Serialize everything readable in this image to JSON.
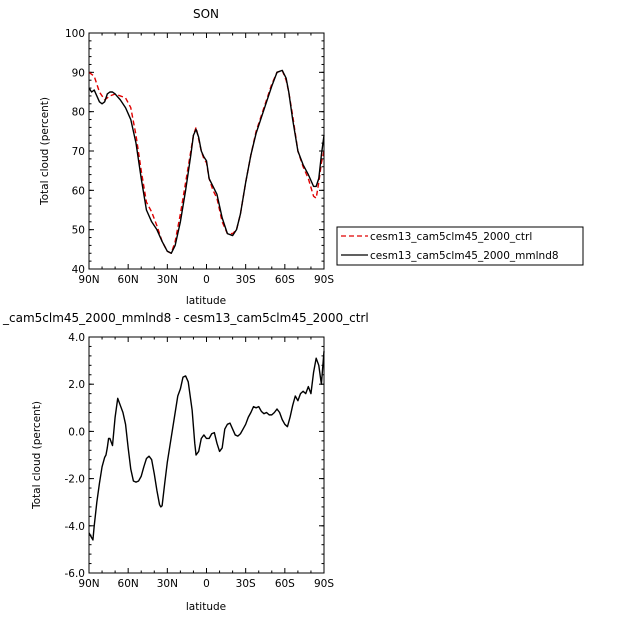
{
  "chart_data": [
    {
      "type": "line",
      "title": "SON",
      "xlabel": "latitude",
      "ylabel": "Total cloud (percent)",
      "xlim": [
        90,
        -90
      ],
      "ylim": [
        40,
        100
      ],
      "xticks": [
        90,
        60,
        30,
        0,
        -30,
        -60,
        -90
      ],
      "xtick_labels": [
        "90N",
        "60N",
        "30N",
        "0",
        "30S",
        "60S",
        "90S"
      ],
      "yticks": [
        40,
        50,
        60,
        70,
        80,
        90,
        100
      ],
      "ytick_labels": [
        "40",
        "50",
        "60",
        "70",
        "80",
        "90",
        "100"
      ],
      "legend_position": "right",
      "series": [
        {
          "name": "cesm13_cam5clm45_2000_ctrl",
          "color": "#e00000",
          "dash": "dashed",
          "x": [
            90,
            86,
            82,
            78,
            74,
            70,
            66,
            62,
            58,
            54,
            50,
            46,
            42,
            38,
            34,
            30,
            27,
            24,
            20,
            16,
            12,
            10,
            8,
            6,
            4,
            2,
            0,
            -2,
            -5,
            -8,
            -12,
            -16,
            -20,
            -23,
            -26,
            -30,
            -34,
            -38,
            -42,
            -46,
            -50,
            -54,
            -58,
            -61,
            -63,
            -66,
            -70,
            -74,
            -78,
            -82,
            -84,
            -86,
            -88,
            -90
          ],
          "y": [
            90,
            89,
            85,
            83,
            84,
            84.5,
            84,
            83.5,
            81,
            74,
            65,
            57,
            54.5,
            51,
            47,
            44.5,
            44,
            47,
            54,
            62,
            70,
            74,
            76,
            73,
            70,
            68,
            67,
            63,
            60,
            58,
            52,
            49,
            49,
            50,
            54,
            62,
            69,
            75,
            79,
            83,
            87,
            90,
            90.5,
            88,
            85,
            79,
            70,
            66,
            63,
            58.5,
            58,
            62,
            67,
            70
          ]
        },
        {
          "name": "cesm13_cam5clm45_2000_mmlnd8",
          "color": "#000000",
          "dash": "solid",
          "x": [
            90,
            88,
            86,
            84,
            82,
            80,
            78,
            76,
            74,
            72,
            70,
            66,
            62,
            58,
            54,
            50,
            46,
            42,
            38,
            34,
            30,
            27,
            24,
            20,
            16,
            12,
            10,
            8,
            6,
            4,
            2,
            0,
            -2,
            -5,
            -8,
            -12,
            -16,
            -20,
            -23,
            -26,
            -30,
            -34,
            -38,
            -42,
            -46,
            -50,
            -54,
            -58,
            -61,
            -63,
            -66,
            -70,
            -74,
            -78,
            -82,
            -84,
            -86,
            -88,
            -90
          ],
          "y": [
            86,
            85,
            85.5,
            84,
            82.5,
            82,
            82.5,
            84.5,
            85,
            85,
            84.5,
            83,
            81,
            78,
            72,
            63,
            55,
            52,
            50,
            47,
            44.5,
            44,
            46,
            52,
            60,
            69,
            74,
            75.5,
            73.5,
            70,
            68.5,
            67.5,
            63,
            61,
            59,
            53,
            49,
            48.5,
            50,
            54,
            62,
            69,
            74.5,
            78.5,
            82.5,
            86.5,
            90,
            90.5,
            88.5,
            85,
            78,
            70,
            66.5,
            64,
            61,
            61,
            63,
            69,
            74
          ]
        }
      ]
    },
    {
      "type": "line",
      "title": "_cam5clm45_2000_mmlnd8 - cesm13_cam5clm45_2000_ctrl",
      "xlabel": "latitude",
      "ylabel": "Total cloud (percent)",
      "xlim": [
        90,
        -90
      ],
      "ylim": [
        -6,
        4
      ],
      "xticks": [
        90,
        60,
        30,
        0,
        -30,
        -60,
        -90
      ],
      "xtick_labels": [
        "90N",
        "60N",
        "30N",
        "0",
        "30S",
        "60S",
        "90S"
      ],
      "yticks": [
        -6,
        -4,
        -2,
        0,
        2,
        4
      ],
      "ytick_labels": [
        "-6.0",
        "-4.0",
        "-2.0",
        "0.0",
        "2.0",
        "4.0"
      ],
      "series": [
        {
          "color": "#000000",
          "dash": "solid",
          "x": [
            90,
            88,
            87,
            86,
            84,
            82,
            80,
            78,
            77,
            76,
            75,
            74,
            72,
            70,
            68,
            66,
            64,
            62,
            60,
            58,
            56,
            54,
            52,
            50,
            48,
            46,
            44,
            42,
            40,
            38,
            36,
            35,
            34,
            32,
            30,
            28,
            26,
            24,
            22,
            20,
            18,
            16,
            14,
            12,
            11,
            10,
            9,
            8,
            6,
            4,
            2,
            0,
            -2,
            -4,
            -6,
            -8,
            -10,
            -12,
            -14,
            -16,
            -18,
            -20,
            -22,
            -24,
            -26,
            -28,
            -30,
            -32,
            -34,
            -36,
            -38,
            -40,
            -42,
            -44,
            -46,
            -48,
            -50,
            -52,
            -54,
            -56,
            -58,
            -60,
            -62,
            -64,
            -66,
            -68,
            -70,
            -72,
            -74,
            -76,
            -78,
            -80,
            -82,
            -84,
            -86,
            -88,
            -89,
            -90
          ],
          "y": [
            -4.3,
            -4.5,
            -4.6,
            -4.0,
            -3.0,
            -2.2,
            -1.5,
            -1.1,
            -1.0,
            -0.7,
            -0.3,
            -0.3,
            -0.6,
            0.6,
            1.4,
            1.1,
            0.8,
            0.3,
            -0.7,
            -1.6,
            -2.1,
            -2.15,
            -2.1,
            -1.9,
            -1.5,
            -1.15,
            -1.05,
            -1.2,
            -1.8,
            -2.5,
            -3.1,
            -3.2,
            -3.15,
            -2.2,
            -1.3,
            -0.6,
            0.1,
            0.8,
            1.5,
            1.8,
            2.3,
            2.35,
            2.1,
            1.3,
            0.9,
            0.2,
            -0.5,
            -1.0,
            -0.85,
            -0.3,
            -0.15,
            -0.3,
            -0.3,
            -0.1,
            -0.05,
            -0.5,
            -0.85,
            -0.7,
            0.1,
            0.3,
            0.35,
            0.1,
            -0.15,
            -0.2,
            -0.1,
            0.1,
            0.3,
            0.6,
            0.8,
            1.05,
            1.0,
            1.05,
            0.85,
            0.75,
            0.8,
            0.7,
            0.7,
            0.8,
            0.95,
            0.8,
            0.5,
            0.3,
            0.2,
            0.6,
            1.1,
            1.5,
            1.3,
            1.6,
            1.7,
            1.6,
            1.9,
            1.6,
            2.5,
            3.1,
            2.8,
            2.0,
            2.7,
            3.4
          ]
        }
      ]
    }
  ]
}
